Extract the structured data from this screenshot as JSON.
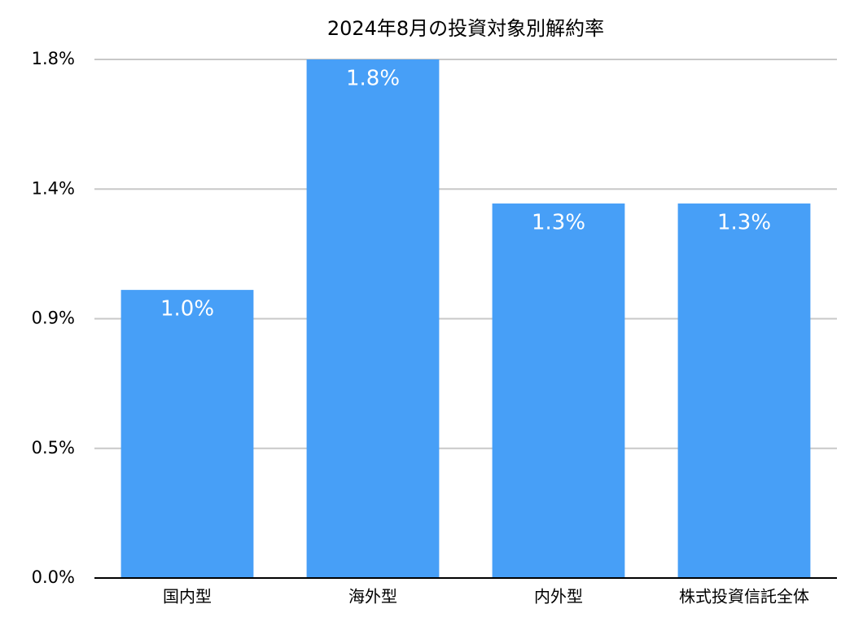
{
  "chart_data": {
    "type": "bar",
    "title": "2024年8月の投資対象別解約率",
    "categories": [
      "国内型",
      "海外型",
      "内外型",
      "株式投資信託全体"
    ],
    "values": [
      1.0,
      1.8,
      1.3,
      1.3
    ],
    "value_labels": [
      "1.0%",
      "1.8%",
      "1.3%",
      "1.3%"
    ],
    "color": "#479ff7",
    "ylim": [
      0,
      1.8
    ],
    "yticks": [
      {
        "value": 0,
        "label": "0.0%"
      },
      {
        "value": 0.45,
        "label": "0.5%"
      },
      {
        "value": 0.9,
        "label": "0.9%"
      },
      {
        "value": 1.35,
        "label": "1.4%"
      },
      {
        "value": 1.8,
        "label": "1.8%"
      }
    ],
    "grid": true
  }
}
